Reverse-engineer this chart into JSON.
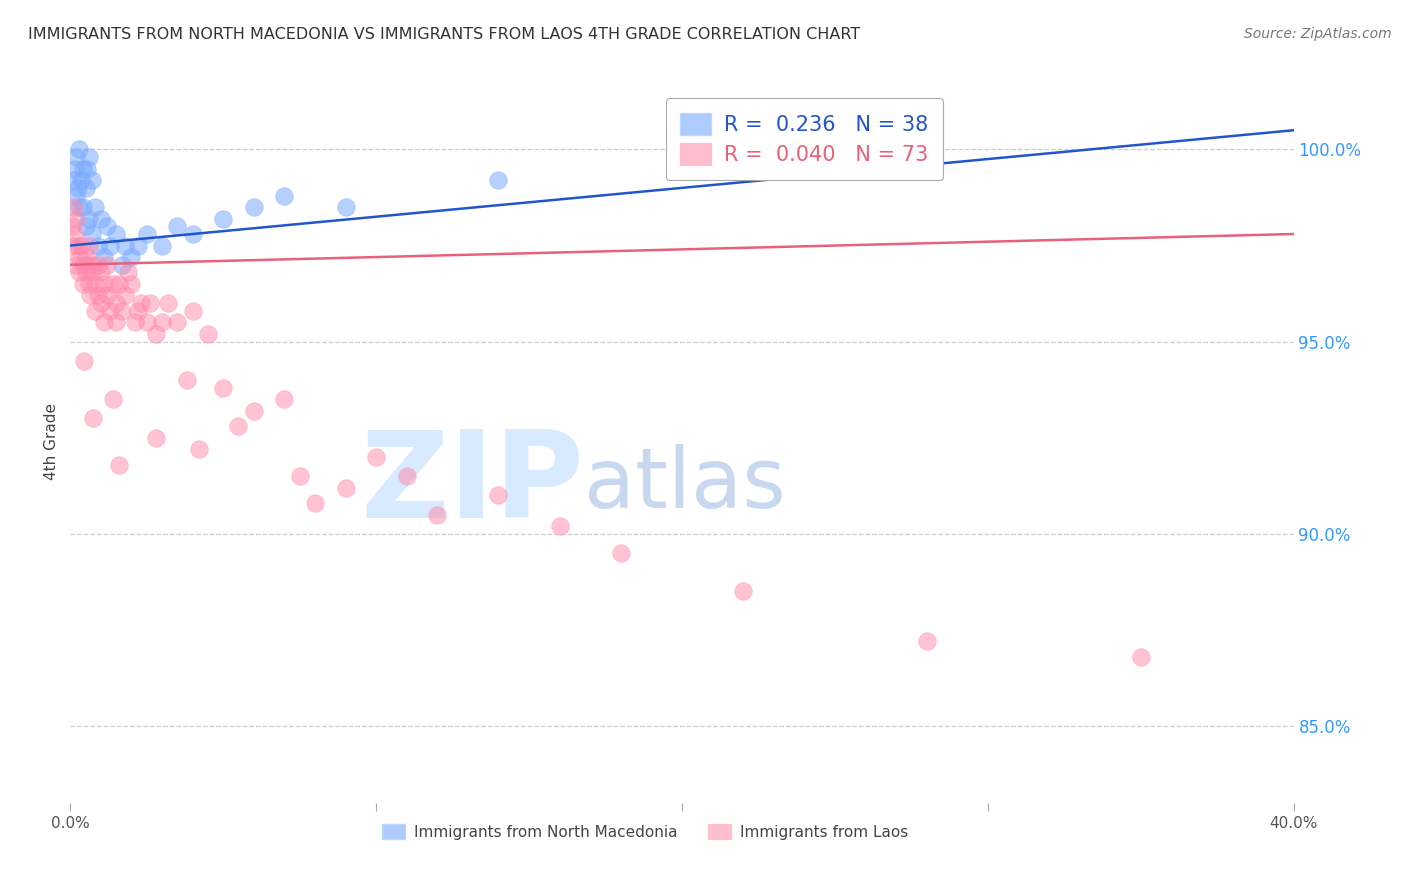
{
  "title": "IMMIGRANTS FROM NORTH MACEDONIA VS IMMIGRANTS FROM LAOS 4TH GRADE CORRELATION CHART",
  "source": "Source: ZipAtlas.com",
  "ylabel": "4th Grade",
  "ylabel_right_ticks": [
    85.0,
    90.0,
    95.0,
    100.0
  ],
  "blue_label": "Immigrants from North Macedonia",
  "pink_label": "Immigrants from Laos",
  "blue_R": 0.236,
  "blue_N": 38,
  "pink_R": 0.04,
  "pink_N": 73,
  "blue_color": "#7aaaff",
  "pink_color": "#ff88aa",
  "blue_line_color": "#2255CC",
  "pink_line_color": "#e8607a",
  "watermark_zip": "ZIP",
  "watermark_atlas": "atlas",
  "watermark_color_zip": "#d8eaff",
  "watermark_color_atlas": "#c8d8ee",
  "xmin": 0.0,
  "xmax": 40.0,
  "ymin": 83.0,
  "ymax": 101.8,
  "blue_line_x0": 0.0,
  "blue_line_y0": 97.5,
  "blue_line_x1": 40.0,
  "blue_line_y1": 100.5,
  "pink_line_x0": 0.0,
  "pink_line_y0": 97.0,
  "pink_line_x1": 40.0,
  "pink_line_y1": 97.8,
  "blue_scatter_x": [
    0.1,
    0.15,
    0.2,
    0.2,
    0.25,
    0.3,
    0.3,
    0.35,
    0.4,
    0.4,
    0.5,
    0.5,
    0.55,
    0.6,
    0.6,
    0.7,
    0.7,
    0.8,
    0.9,
    1.0,
    1.1,
    1.2,
    1.3,
    1.5,
    1.7,
    1.8,
    2.0,
    2.2,
    2.5,
    3.0,
    3.5,
    4.0,
    5.0,
    6.0,
    7.0,
    9.0,
    14.0,
    22.0
  ],
  "blue_scatter_y": [
    99.2,
    99.5,
    98.8,
    99.8,
    99.0,
    98.5,
    100.0,
    99.2,
    98.5,
    99.5,
    98.0,
    99.0,
    99.5,
    98.2,
    99.8,
    97.8,
    99.2,
    98.5,
    97.5,
    98.2,
    97.2,
    98.0,
    97.5,
    97.8,
    97.0,
    97.5,
    97.2,
    97.5,
    97.8,
    97.5,
    98.0,
    97.8,
    98.2,
    98.5,
    98.8,
    98.5,
    99.2,
    100.2
  ],
  "pink_scatter_x": [
    0.05,
    0.1,
    0.1,
    0.15,
    0.2,
    0.2,
    0.25,
    0.3,
    0.3,
    0.35,
    0.4,
    0.4,
    0.5,
    0.5,
    0.55,
    0.6,
    0.6,
    0.65,
    0.7,
    0.7,
    0.8,
    0.8,
    0.9,
    0.9,
    1.0,
    1.0,
    1.1,
    1.1,
    1.2,
    1.2,
    1.3,
    1.4,
    1.5,
    1.5,
    1.6,
    1.7,
    1.8,
    1.9,
    2.0,
    2.1,
    2.2,
    2.3,
    2.5,
    2.6,
    2.8,
    3.0,
    3.2,
    3.5,
    4.0,
    4.5,
    5.0,
    6.0,
    7.0,
    8.0,
    9.0,
    10.0,
    11.0,
    12.0,
    14.0,
    16.0,
    18.0,
    22.0,
    28.0,
    35.0,
    1.4,
    2.8,
    5.5,
    7.5,
    3.8,
    4.2,
    0.75,
    1.6,
    0.45
  ],
  "pink_scatter_y": [
    98.0,
    98.5,
    97.5,
    97.8,
    98.2,
    97.0,
    97.5,
    97.2,
    96.8,
    97.5,
    97.0,
    96.5,
    97.2,
    96.8,
    97.0,
    96.5,
    97.5,
    96.2,
    97.0,
    96.8,
    96.5,
    95.8,
    97.0,
    96.2,
    96.8,
    96.0,
    96.5,
    95.5,
    96.2,
    97.0,
    95.8,
    96.5,
    96.0,
    95.5,
    96.5,
    95.8,
    96.2,
    96.8,
    96.5,
    95.5,
    95.8,
    96.0,
    95.5,
    96.0,
    95.2,
    95.5,
    96.0,
    95.5,
    95.8,
    95.2,
    93.8,
    93.2,
    93.5,
    90.8,
    91.2,
    92.0,
    91.5,
    90.5,
    91.0,
    90.2,
    89.5,
    88.5,
    87.2,
    86.8,
    93.5,
    92.5,
    92.8,
    91.5,
    94.0,
    92.2,
    93.0,
    91.8,
    94.5
  ]
}
